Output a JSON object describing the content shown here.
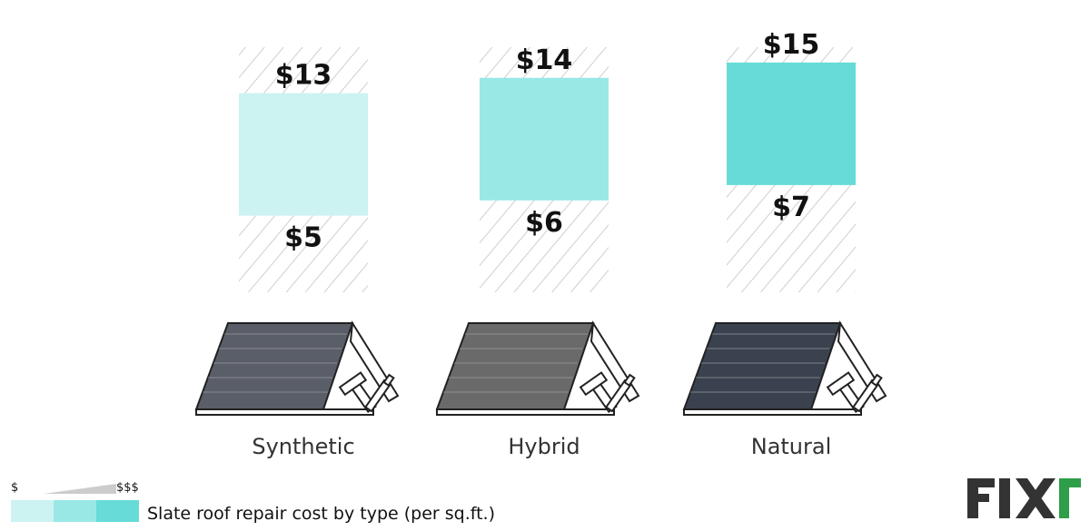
{
  "chart_data": {
    "type": "bar",
    "title": "",
    "categories": [
      "Synthetic",
      "Hybrid",
      "Natural"
    ],
    "series": [
      {
        "low": 5,
        "high": 13
      },
      {
        "low": 6,
        "high": 14
      },
      {
        "low": 7,
        "high": 15
      }
    ],
    "low_labels": [
      "$5",
      "$6",
      "$7"
    ],
    "high_labels": [
      "$13",
      "$14",
      "$15"
    ],
    "bar_colors": [
      "#ccf2f2",
      "#99e8e6",
      "#66dbd8"
    ],
    "ylim": [
      0,
      16
    ],
    "grid": false
  },
  "legend": {
    "low_symbol": "$",
    "high_symbol": "$$$",
    "caption": "Slate roof repair cost by type (per sq.ft.)",
    "swatch_colors": [
      "#ccf2f2",
      "#99e8e6",
      "#66dbd8"
    ]
  },
  "illustrations": [
    {
      "name": "synthetic-roof-illustration",
      "icon": "roof-with-tools-icon",
      "tile_color": "#5a5e68"
    },
    {
      "name": "hybrid-roof-illustration",
      "icon": "roof-with-tools-icon",
      "tile_color": "#6a6a6a"
    },
    {
      "name": "natural-roof-illustration",
      "icon": "roof-with-tools-icon",
      "tile_color": "#3a4250"
    }
  ],
  "logo": {
    "text": "FIXr",
    "dark_color": "#333333",
    "accent_color": "#2e9e48"
  }
}
